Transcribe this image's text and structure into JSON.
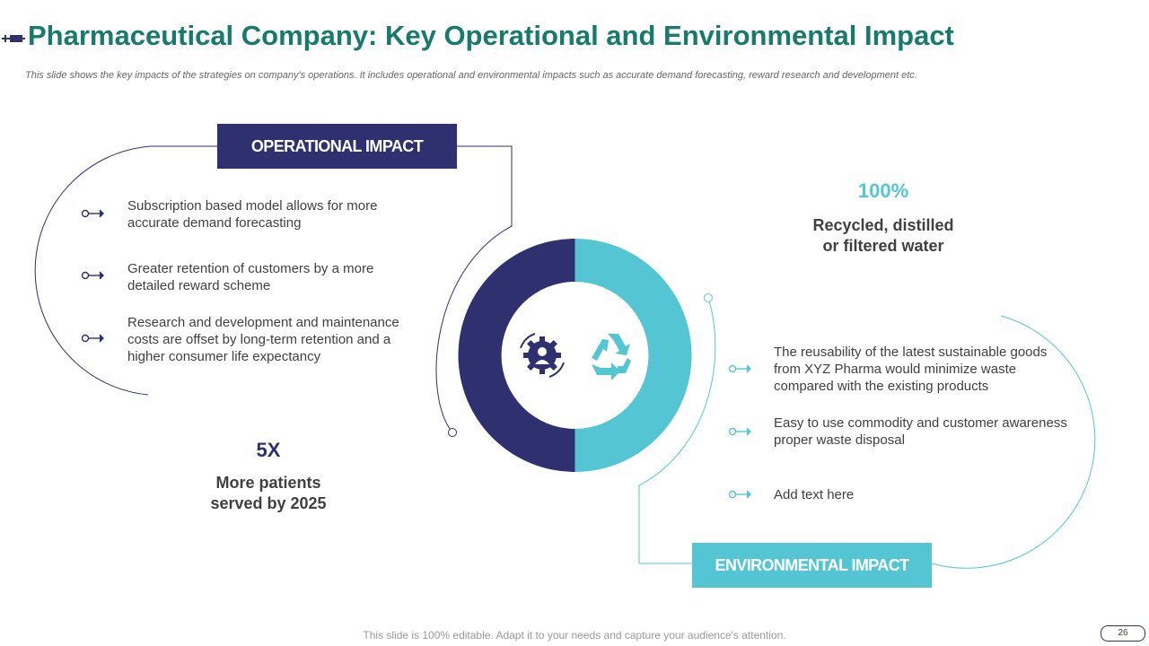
{
  "title": "Pharmaceutical Company: Key Operational and Environmental Impact",
  "subtitle": "This slide shows the key impacts of the strategies on company's operations. It includes operational and environmental impacts such as accurate demand forecasting, reward research and development etc.",
  "colors": {
    "navy": "#2e3070",
    "teal": "#54c6d3",
    "title_green": "#177a6c"
  },
  "operational": {
    "header": "OPERATIONAL IMPACT",
    "bullets": [
      "Subscription based model allows for more accurate demand forecasting",
      "Greater retention of customers by a more detailed reward scheme",
      "Research and development and maintenance costs are offset by long-term retention and a higher consumer life expectancy"
    ],
    "stat_value": "5X",
    "stat_label_line1": "More patients",
    "stat_label_line2": "served by 2025"
  },
  "environmental": {
    "header": "ENVIRONMENTAL IMPACT",
    "bullets": [
      "The reusability of the latest sustainable goods from XYZ Pharma would minimize waste compared with the existing products",
      "Easy to use commodity and customer awareness proper waste disposal",
      "Add text here"
    ],
    "stat_value": "100%",
    "stat_label_line1": "Recycled, distilled",
    "stat_label_line2": "or filtered water"
  },
  "center_icons": {
    "left": "doctor-gear-icon",
    "right": "recycle-icon"
  },
  "footer_note": "This slide is 100% editable. Adapt it to your needs and capture your audience's attention.",
  "page_number": "26"
}
